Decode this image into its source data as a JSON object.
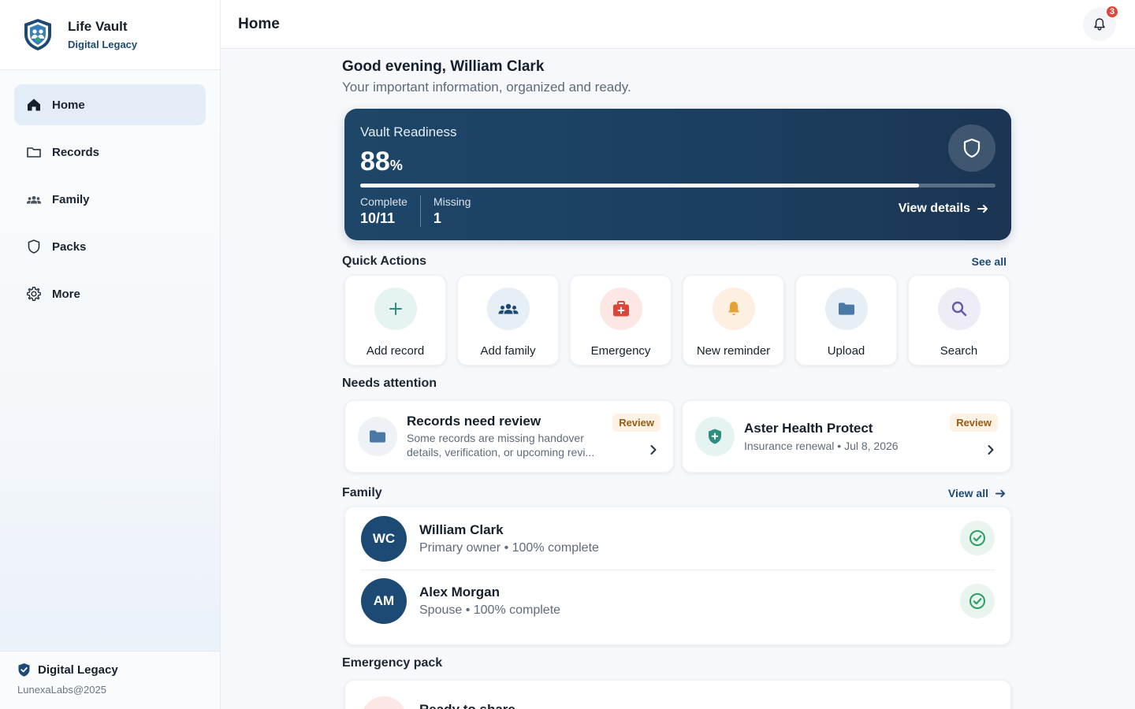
{
  "brand": {
    "title": "Life Vault",
    "subtitle": "Digital Legacy"
  },
  "sidebar": {
    "items": [
      {
        "label": "Home",
        "icon": "home-icon",
        "active": true
      },
      {
        "label": "Records",
        "icon": "folder-icon"
      },
      {
        "label": "Family",
        "icon": "people-icon"
      },
      {
        "label": "Packs",
        "icon": "shield-icon"
      },
      {
        "label": "More",
        "icon": "gear-icon"
      }
    ],
    "footer": {
      "brand": "Digital Legacy",
      "copyright": "LunexaLabs@2025"
    }
  },
  "header": {
    "title": "Home",
    "notification_count": "3"
  },
  "greeting": {
    "title": "Good evening, William Clark",
    "subtitle": "Your important information, organized and ready."
  },
  "vault": {
    "label": "Vault Readiness",
    "percent": "88",
    "percent_sign": "%",
    "progress_fraction": 0.88,
    "complete_label": "Complete",
    "complete_value": "10/11",
    "missing_label": "Missing",
    "missing_value": "1",
    "details_link": "View details"
  },
  "quick_actions": {
    "title": "Quick Actions",
    "see_all": "See all",
    "items": [
      {
        "label": "Add record",
        "icon": "plus-icon",
        "bg": "#e6f4f1",
        "color": "#2f8f7e"
      },
      {
        "label": "Add family",
        "icon": "people-icon",
        "bg": "#e6eef6",
        "color": "#1d4a75"
      },
      {
        "label": "Emergency",
        "icon": "medkit-icon",
        "bg": "#fde7e4",
        "color": "#d9473a"
      },
      {
        "label": "New reminder",
        "icon": "bell-icon",
        "bg": "#fdf0e2",
        "color": "#e3a232"
      },
      {
        "label": "Upload",
        "icon": "folder-icon",
        "bg": "#e6eef6",
        "color": "#4a79a5"
      },
      {
        "label": "Search",
        "icon": "search-icon",
        "bg": "#eeecf6",
        "color": "#6a5aa5"
      }
    ]
  },
  "needs_attention": {
    "title": "Needs attention",
    "items": [
      {
        "title": "Records need review",
        "description": "Some records are missing handover details, verification, or upcoming revi...",
        "badge": "Review",
        "icon": "folder-icon"
      },
      {
        "title": "Aster Health Protect",
        "description": "Insurance renewal • Jul 8, 2026",
        "badge": "Review",
        "icon": "shield-plus-icon"
      }
    ]
  },
  "family": {
    "title": "Family",
    "view_all": "View all",
    "members": [
      {
        "initials": "WC",
        "name": "William Clark",
        "detail": "Primary owner • 100% complete"
      },
      {
        "initials": "AM",
        "name": "Alex Morgan",
        "detail": "Spouse • 100% complete"
      }
    ]
  },
  "emergency_pack": {
    "title": "Emergency pack",
    "card_title": "Ready to share"
  }
}
